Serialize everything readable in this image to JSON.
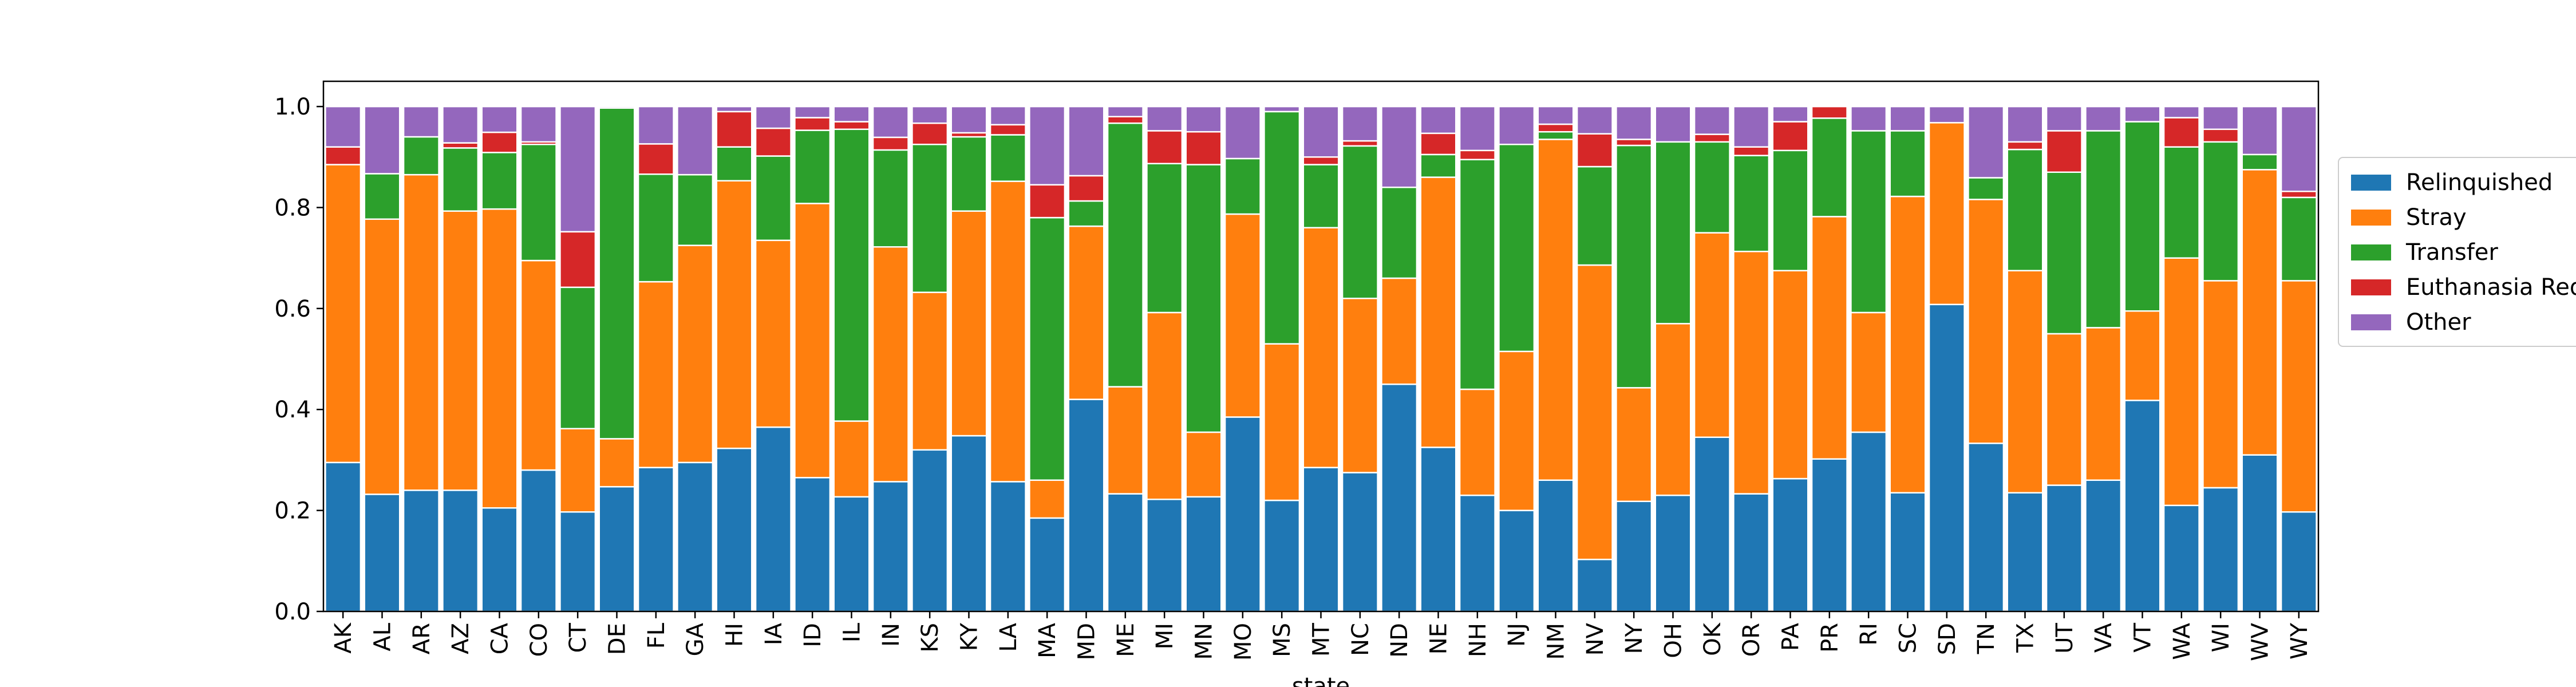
{
  "chart_data": {
    "type": "bar",
    "stacked": true,
    "xlabel": "state",
    "ylabel": "",
    "ylim": [
      0,
      1.05
    ],
    "yticks": [
      "0.0",
      "0.2",
      "0.4",
      "0.6",
      "0.8",
      "1.0"
    ],
    "legend_position": "right, outside plot",
    "categories": [
      "AK",
      "AL",
      "AR",
      "AZ",
      "CA",
      "CO",
      "CT",
      "DE",
      "FL",
      "GA",
      "HI",
      "IA",
      "ID",
      "IL",
      "IN",
      "KS",
      "KY",
      "LA",
      "MA",
      "MD",
      "ME",
      "MI",
      "MN",
      "MO",
      "MS",
      "MT",
      "NC",
      "ND",
      "NE",
      "NH",
      "NJ",
      "NM",
      "NV",
      "NY",
      "OH",
      "OK",
      "OR",
      "PA",
      "PR",
      "RI",
      "SC",
      "SD",
      "TN",
      "TX",
      "UT",
      "VA",
      "VT",
      "WA",
      "WI",
      "WV",
      "WY"
    ],
    "series": [
      {
        "name": "Relinquished",
        "color": "#1f77b4",
        "values": [
          0.295,
          0.232,
          0.24,
          0.24,
          0.205,
          0.28,
          0.197,
          0.247,
          0.285,
          0.295,
          0.323,
          0.365,
          0.265,
          0.227,
          0.257,
          0.32,
          0.348,
          0.257,
          0.185,
          0.42,
          0.233,
          0.222,
          0.227,
          0.385,
          0.22,
          0.285,
          0.275,
          0.45,
          0.325,
          0.23,
          0.2,
          0.26,
          0.103,
          0.218,
          0.23,
          0.345,
          0.233,
          0.263,
          0.302,
          0.355,
          0.235,
          0.608,
          0.333,
          0.235,
          0.25,
          0.26,
          0.418,
          0.21,
          0.245,
          0.31,
          0.197
        ]
      },
      {
        "name": "Stray",
        "color": "#ff7f0e",
        "values": [
          0.59,
          0.545,
          0.625,
          0.553,
          0.592,
          0.415,
          0.165,
          0.095,
          0.368,
          0.43,
          0.53,
          0.37,
          0.543,
          0.15,
          0.465,
          0.312,
          0.445,
          0.595,
          0.075,
          0.343,
          0.212,
          0.37,
          0.128,
          0.402,
          0.31,
          0.475,
          0.345,
          0.21,
          0.535,
          0.21,
          0.315,
          0.675,
          0.583,
          0.225,
          0.34,
          0.405,
          0.48,
          0.412,
          0.48,
          0.237,
          0.587,
          0.36,
          0.483,
          0.44,
          0.3,
          0.302,
          0.177,
          0.49,
          0.41,
          0.565,
          0.458
        ]
      },
      {
        "name": "Transfer",
        "color": "#2ca02c",
        "values": [
          0.0,
          0.09,
          0.075,
          0.125,
          0.112,
          0.23,
          0.28,
          0.655,
          0.213,
          0.14,
          0.067,
          0.167,
          0.145,
          0.578,
          0.192,
          0.293,
          0.147,
          0.092,
          0.52,
          0.05,
          0.522,
          0.295,
          0.53,
          0.11,
          0.46,
          0.125,
          0.302,
          0.18,
          0.045,
          0.455,
          0.41,
          0.015,
          0.195,
          0.48,
          0.36,
          0.18,
          0.19,
          0.238,
          0.195,
          0.36,
          0.13,
          0.0,
          0.043,
          0.24,
          0.32,
          0.39,
          0.375,
          0.22,
          0.275,
          0.03,
          0.165
        ]
      },
      {
        "name": "Euthanasia Requested",
        "color": "#d62728",
        "values": [
          0.035,
          0.0,
          0.0,
          0.01,
          0.04,
          0.005,
          0.11,
          0.0,
          0.06,
          0.0,
          0.07,
          0.055,
          0.025,
          0.015,
          0.025,
          0.042,
          0.008,
          0.02,
          0.065,
          0.05,
          0.013,
          0.065,
          0.065,
          0.0,
          0.0,
          0.015,
          0.01,
          0.0,
          0.042,
          0.018,
          0.0,
          0.015,
          0.065,
          0.012,
          0.0,
          0.015,
          0.017,
          0.057,
          0.023,
          0.0,
          0.0,
          0.0,
          0.0,
          0.015,
          0.082,
          0.0,
          0.0,
          0.058,
          0.025,
          0.0,
          0.012
        ]
      },
      {
        "name": "Other",
        "color": "#9467bd",
        "values": [
          0.08,
          0.133,
          0.06,
          0.072,
          0.051,
          0.07,
          0.248,
          0.003,
          0.074,
          0.135,
          0.01,
          0.043,
          0.022,
          0.03,
          0.061,
          0.033,
          0.052,
          0.036,
          0.155,
          0.137,
          0.02,
          0.048,
          0.05,
          0.103,
          0.01,
          0.1,
          0.068,
          0.16,
          0.053,
          0.087,
          0.075,
          0.035,
          0.054,
          0.065,
          0.07,
          0.055,
          0.08,
          0.03,
          0.0,
          0.048,
          0.048,
          0.032,
          0.141,
          0.07,
          0.048,
          0.048,
          0.03,
          0.022,
          0.045,
          0.095,
          0.168
        ]
      }
    ]
  }
}
